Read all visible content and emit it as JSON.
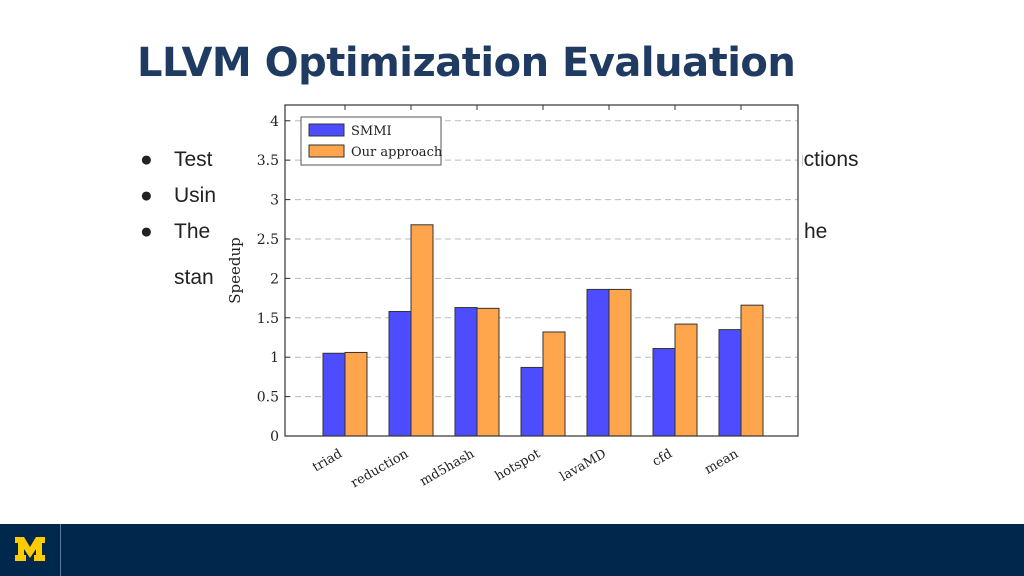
{
  "slide": {
    "title": "LLVM Optimization Evaluation",
    "bullets": [
      {
        "left": "Test",
        "right": "ructions"
      },
      {
        "left": "Usin",
        "right": ""
      },
      {
        "left": "The",
        "right": "he"
      },
      {
        "left": "stan",
        "right": ""
      }
    ]
  },
  "footer": {
    "logo_icon": "university-block-m-logo",
    "logo_color": "#ffcb05",
    "bar_color": "#00274c"
  },
  "colors": {
    "series1": "#4d4dff",
    "series2": "#ffa64d",
    "title": "#1f3b61"
  },
  "chart_data": {
    "type": "bar",
    "categories": [
      "triad",
      "reduction",
      "md5hash",
      "hotspot",
      "lavaMD",
      "cfd",
      "mean"
    ],
    "series": [
      {
        "name": "SMMI",
        "values": [
          1.05,
          1.58,
          1.63,
          0.87,
          1.86,
          1.11,
          1.35
        ],
        "color": "#4d4dff"
      },
      {
        "name": "Our approach",
        "values": [
          1.06,
          2.68,
          1.62,
          1.32,
          1.86,
          1.42,
          1.66
        ],
        "color": "#ffa64d"
      }
    ],
    "ylabel": "Speedup",
    "xlabel": "",
    "ylim": [
      0,
      4.2
    ],
    "yticks": [
      "0",
      "0.5",
      "1",
      "1.5",
      "2",
      "2.5",
      "3",
      "3.5",
      "4"
    ],
    "grid": true,
    "legend": "top-left"
  }
}
